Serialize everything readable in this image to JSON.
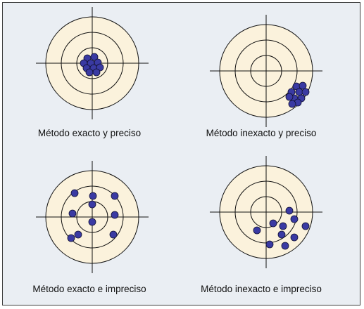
{
  "colors": {
    "background": "#eaeef3",
    "border": "#3d3d3d",
    "ring_fill": "#fbf2dc",
    "ring_stroke": "#111111",
    "dot_fill": "#3a3aa3",
    "dot_stroke": "#111133"
  },
  "panels": [
    {
      "id": "exact-precise",
      "caption": "Método exacto y preciso",
      "accuracy": "exacto",
      "precision": "preciso",
      "dots": [
        [
          -7,
          -7
        ],
        [
          3,
          -9
        ],
        [
          -12,
          0
        ],
        [
          -2,
          0
        ],
        [
          8,
          -1
        ],
        [
          -8,
          7
        ],
        [
          2,
          7
        ],
        [
          11,
          6
        ],
        [
          -4,
          13
        ],
        [
          6,
          13
        ]
      ]
    },
    {
      "id": "inexact-precise",
      "caption": "Método inexacto y preciso",
      "accuracy": "inexacto",
      "precision": "preciso",
      "dots": [
        [
          43,
          22
        ],
        [
          52,
          21
        ],
        [
          36,
          30
        ],
        [
          47,
          30
        ],
        [
          56,
          30
        ],
        [
          40,
          39
        ],
        [
          50,
          39
        ],
        [
          33,
          37
        ],
        [
          45,
          45
        ],
        [
          37,
          47
        ]
      ]
    },
    {
      "id": "exact-imprecise",
      "caption": "Método exacto e impreciso",
      "accuracy": "exacto",
      "precision": "impreciso",
      "dots": [
        [
          -25,
          -34
        ],
        [
          1,
          -30
        ],
        [
          32,
          -30
        ],
        [
          -28,
          -5
        ],
        [
          0,
          -18
        ],
        [
          32,
          -3
        ],
        [
          0,
          7
        ],
        [
          -20,
          25
        ],
        [
          -30,
          30
        ],
        [
          30,
          25
        ]
      ]
    },
    {
      "id": "inexact-imprecise",
      "caption": "Método inexacto e impreciso",
      "accuracy": "inexacto",
      "precision": "impreciso",
      "dots": [
        [
          33,
          -2
        ],
        [
          40,
          10
        ],
        [
          10,
          16
        ],
        [
          24,
          20
        ],
        [
          56,
          20
        ],
        [
          -13,
          26
        ],
        [
          22,
          32
        ],
        [
          40,
          36
        ],
        [
          5,
          46
        ],
        [
          27,
          48
        ]
      ]
    }
  ]
}
